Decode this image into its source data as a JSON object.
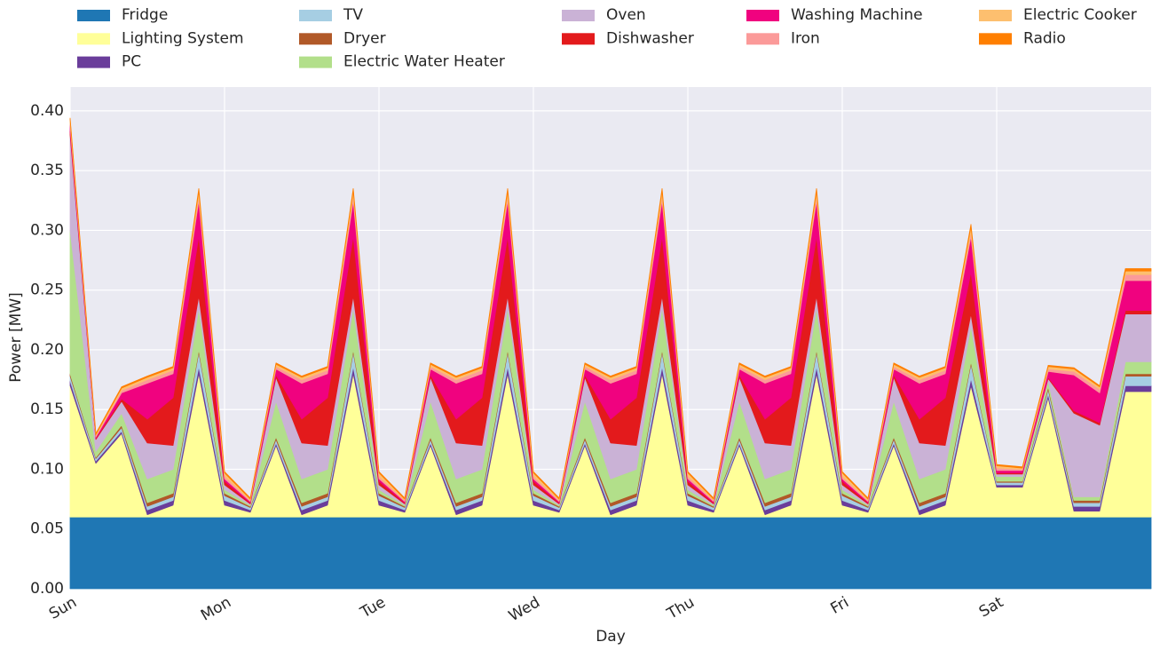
{
  "chart_data": {
    "type": "stacked_area",
    "xlabel": "Day",
    "ylabel": "Power [MW]",
    "x": [
      0,
      4,
      8,
      12,
      16,
      20,
      24,
      28,
      32,
      36,
      40,
      44,
      48,
      52,
      56,
      60,
      64,
      68,
      72,
      76,
      80,
      84,
      88,
      92,
      96,
      100,
      104,
      108,
      112,
      116,
      120,
      124,
      128,
      132,
      136,
      140,
      144,
      148,
      152,
      156,
      160,
      164,
      168
    ],
    "xlim": [
      0,
      168
    ],
    "xticks": [
      {
        "value": 0,
        "label": "Sun"
      },
      {
        "value": 24,
        "label": "Mon"
      },
      {
        "value": 48,
        "label": "Tue"
      },
      {
        "value": 72,
        "label": "Wed"
      },
      {
        "value": 96,
        "label": "Thu"
      },
      {
        "value": 120,
        "label": "Fri"
      },
      {
        "value": 144,
        "label": "Sat"
      }
    ],
    "ylim": [
      0,
      0.42
    ],
    "yticks": [
      {
        "value": 0,
        "label": "0.00"
      },
      {
        "value": 0.05,
        "label": "0.05"
      },
      {
        "value": 0.1,
        "label": "0.10"
      },
      {
        "value": 0.15,
        "label": "0.15"
      },
      {
        "value": 0.2,
        "label": "0.20"
      },
      {
        "value": 0.25,
        "label": "0.25"
      },
      {
        "value": 0.3,
        "label": "0.30"
      },
      {
        "value": 0.35,
        "label": "0.35"
      },
      {
        "value": 0.4,
        "label": "0.40"
      }
    ],
    "grid": true,
    "series": [
      {
        "name": "Fridge",
        "color": "#1f77b4",
        "values": [
          0.06,
          0.06,
          0.06,
          0.06,
          0.06,
          0.06,
          0.06,
          0.06,
          0.06,
          0.06,
          0.06,
          0.06,
          0.06,
          0.06,
          0.06,
          0.06,
          0.06,
          0.06,
          0.06,
          0.06,
          0.06,
          0.06,
          0.06,
          0.06,
          0.06,
          0.06,
          0.06,
          0.06,
          0.06,
          0.06,
          0.06,
          0.06,
          0.06,
          0.06,
          0.06,
          0.06,
          0.06,
          0.06,
          0.06,
          0.06,
          0.06,
          0.06,
          0.06
        ]
      },
      {
        "name": "Lighting System",
        "color": "#ffff99",
        "values": [
          0.11,
          0.045,
          0.07,
          0.002,
          0.01,
          0.12,
          0.01,
          0.004,
          0.06,
          0.002,
          0.01,
          0.12,
          0.01,
          0.004,
          0.06,
          0.002,
          0.01,
          0.12,
          0.01,
          0.004,
          0.06,
          0.002,
          0.01,
          0.12,
          0.01,
          0.004,
          0.06,
          0.002,
          0.01,
          0.12,
          0.01,
          0.004,
          0.06,
          0.002,
          0.01,
          0.11,
          0.025,
          0.025,
          0.1,
          0.005,
          0.005,
          0.105,
          0.105
        ]
      },
      {
        "name": "PC",
        "color": "#6a3d9a",
        "values": [
          0.004,
          0.002,
          0.002,
          0.004,
          0.004,
          0.006,
          0.004,
          0.002,
          0.002,
          0.004,
          0.004,
          0.006,
          0.004,
          0.002,
          0.002,
          0.004,
          0.004,
          0.006,
          0.004,
          0.002,
          0.002,
          0.004,
          0.004,
          0.006,
          0.004,
          0.002,
          0.002,
          0.004,
          0.004,
          0.006,
          0.004,
          0.002,
          0.002,
          0.004,
          0.004,
          0.006,
          0.002,
          0.002,
          0.003,
          0.004,
          0.004,
          0.005,
          0.005
        ]
      },
      {
        "name": "TV",
        "color": "#a6cee3",
        "values": [
          0.004,
          0.002,
          0.003,
          0.003,
          0.003,
          0.012,
          0.004,
          0.002,
          0.003,
          0.003,
          0.003,
          0.012,
          0.004,
          0.002,
          0.003,
          0.003,
          0.003,
          0.012,
          0.004,
          0.002,
          0.003,
          0.003,
          0.003,
          0.012,
          0.004,
          0.002,
          0.003,
          0.003,
          0.003,
          0.012,
          0.004,
          0.002,
          0.003,
          0.003,
          0.003,
          0.012,
          0.002,
          0.002,
          0.004,
          0.003,
          0.003,
          0.008,
          0.008
        ]
      },
      {
        "name": "Dryer",
        "color": "#b15928",
        "values": [
          0.002,
          0.001,
          0.002,
          0.003,
          0.003,
          0.002,
          0.002,
          0.001,
          0.002,
          0.003,
          0.003,
          0.002,
          0.002,
          0.001,
          0.002,
          0.003,
          0.003,
          0.002,
          0.002,
          0.001,
          0.002,
          0.003,
          0.003,
          0.002,
          0.002,
          0.001,
          0.002,
          0.003,
          0.003,
          0.002,
          0.002,
          0.001,
          0.002,
          0.003,
          0.003,
          0.002,
          0.001,
          0.001,
          0.002,
          0.002,
          0.002,
          0.002,
          0.002
        ]
      },
      {
        "name": "Electric Water Heater",
        "color": "#b2df8a",
        "values": [
          0.12,
          0.005,
          0.01,
          0.02,
          0.02,
          0.035,
          0.003,
          0.001,
          0.03,
          0.02,
          0.02,
          0.035,
          0.003,
          0.001,
          0.03,
          0.02,
          0.02,
          0.035,
          0.003,
          0.001,
          0.03,
          0.02,
          0.02,
          0.035,
          0.003,
          0.001,
          0.03,
          0.02,
          0.02,
          0.035,
          0.003,
          0.001,
          0.03,
          0.02,
          0.02,
          0.03,
          0.004,
          0.004,
          0.005,
          0.003,
          0.003,
          0.01,
          0.01
        ]
      },
      {
        "name": "Oven",
        "color": "#cab2d6",
        "values": [
          0.08,
          0.01,
          0.01,
          0.03,
          0.02,
          0.01,
          0.004,
          0.001,
          0.02,
          0.03,
          0.02,
          0.01,
          0.004,
          0.001,
          0.02,
          0.03,
          0.02,
          0.01,
          0.004,
          0.001,
          0.02,
          0.03,
          0.02,
          0.01,
          0.004,
          0.001,
          0.02,
          0.03,
          0.02,
          0.01,
          0.004,
          0.001,
          0.02,
          0.03,
          0.02,
          0.01,
          0.002,
          0.002,
          0.002,
          0.07,
          0.06,
          0.04,
          0.04
        ]
      },
      {
        "name": "Dishwasher",
        "color": "#e31a1c",
        "values": [
          0.003,
          0.001,
          0.002,
          0.02,
          0.04,
          0.05,
          0.003,
          0.001,
          0.002,
          0.02,
          0.04,
          0.05,
          0.003,
          0.001,
          0.002,
          0.02,
          0.04,
          0.05,
          0.003,
          0.001,
          0.002,
          0.02,
          0.04,
          0.05,
          0.003,
          0.001,
          0.002,
          0.02,
          0.04,
          0.05,
          0.003,
          0.001,
          0.002,
          0.02,
          0.04,
          0.035,
          0.001,
          0.001,
          0.001,
          0.002,
          0.002,
          0.003,
          0.003
        ]
      },
      {
        "name": "Washing Machine",
        "color": "#f0027f",
        "values": [
          0.005,
          0.001,
          0.005,
          0.03,
          0.02,
          0.03,
          0.002,
          0.001,
          0.005,
          0.03,
          0.02,
          0.03,
          0.002,
          0.001,
          0.005,
          0.03,
          0.02,
          0.03,
          0.002,
          0.001,
          0.005,
          0.03,
          0.02,
          0.03,
          0.002,
          0.001,
          0.005,
          0.03,
          0.02,
          0.03,
          0.002,
          0.001,
          0.005,
          0.03,
          0.02,
          0.03,
          0.002,
          0.002,
          0.005,
          0.03,
          0.025,
          0.025,
          0.025
        ]
      },
      {
        "name": "Iron",
        "color": "#fb9a99",
        "values": [
          0.002,
          0.001,
          0.002,
          0.003,
          0.003,
          0.004,
          0.002,
          0.001,
          0.002,
          0.003,
          0.003,
          0.004,
          0.002,
          0.001,
          0.002,
          0.003,
          0.003,
          0.004,
          0.002,
          0.001,
          0.002,
          0.003,
          0.003,
          0.004,
          0.002,
          0.001,
          0.002,
          0.003,
          0.003,
          0.004,
          0.002,
          0.001,
          0.002,
          0.003,
          0.003,
          0.004,
          0.002,
          0.001,
          0.002,
          0.003,
          0.003,
          0.005,
          0.005
        ]
      },
      {
        "name": "Electric Cooker",
        "color": "#fdbf6f",
        "values": [
          0.003,
          0.001,
          0.002,
          0.002,
          0.002,
          0.004,
          0.003,
          0.001,
          0.002,
          0.002,
          0.002,
          0.004,
          0.003,
          0.001,
          0.002,
          0.002,
          0.002,
          0.004,
          0.003,
          0.001,
          0.002,
          0.002,
          0.002,
          0.004,
          0.003,
          0.001,
          0.002,
          0.002,
          0.002,
          0.004,
          0.003,
          0.001,
          0.002,
          0.002,
          0.002,
          0.004,
          0.002,
          0.001,
          0.002,
          0.002,
          0.002,
          0.003,
          0.003
        ]
      },
      {
        "name": "Radio",
        "color": "#ff7f00",
        "values": [
          0.001,
          0.001,
          0.001,
          0.001,
          0.001,
          0.002,
          0.001,
          0.001,
          0.001,
          0.001,
          0.001,
          0.002,
          0.001,
          0.001,
          0.001,
          0.001,
          0.001,
          0.002,
          0.001,
          0.001,
          0.001,
          0.001,
          0.001,
          0.002,
          0.001,
          0.001,
          0.001,
          0.001,
          0.001,
          0.002,
          0.001,
          0.001,
          0.001,
          0.001,
          0.001,
          0.002,
          0.001,
          0.001,
          0.001,
          0.001,
          0.001,
          0.002,
          0.002
        ]
      }
    ]
  }
}
